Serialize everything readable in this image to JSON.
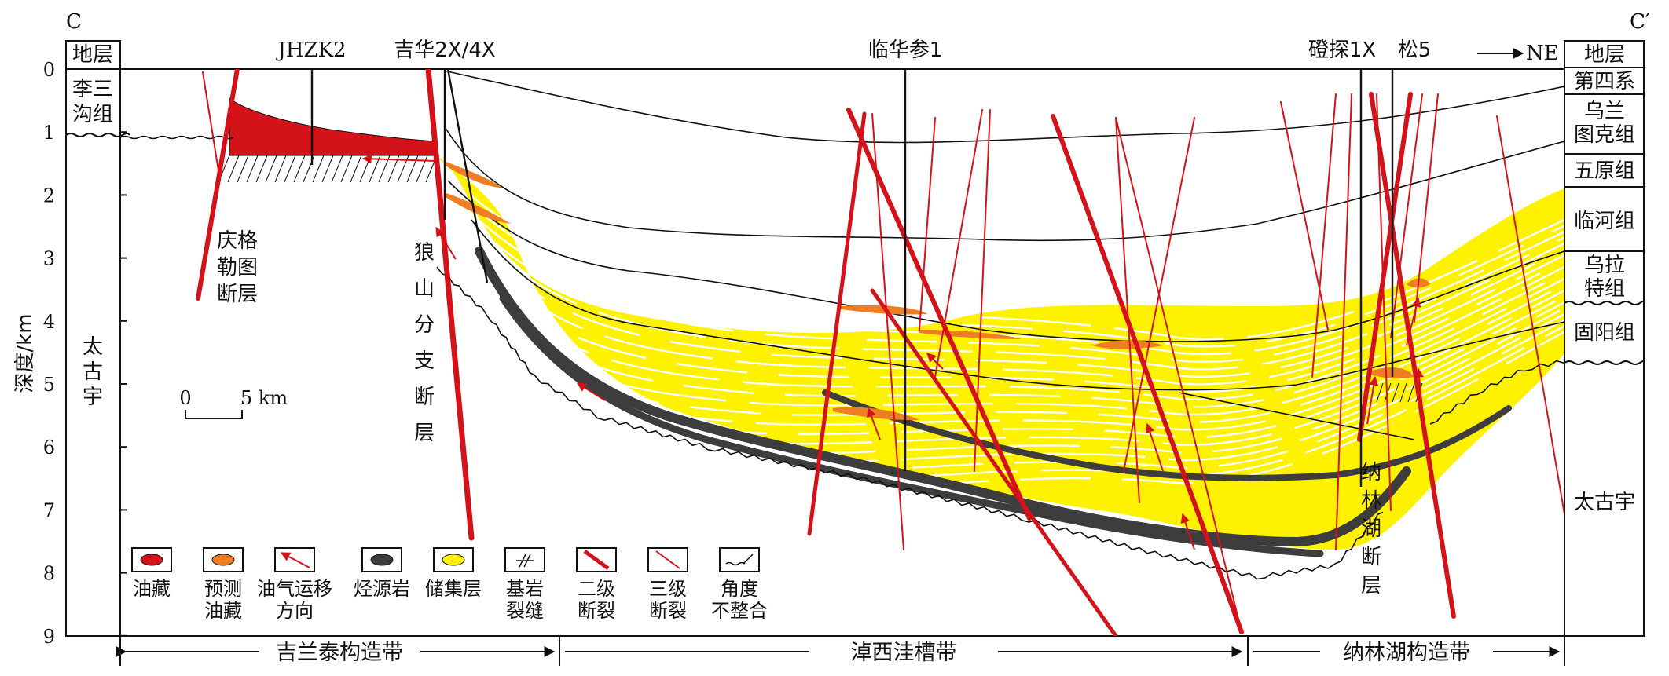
{
  "section": {
    "start_label": "C",
    "end_label": "C′",
    "direction": "NE"
  },
  "y_axis": {
    "label": "深度/km",
    "ticks": [
      "0",
      "1",
      "2",
      "3",
      "4",
      "5",
      "6",
      "7",
      "8",
      "9"
    ]
  },
  "left_column": {
    "header": "地层",
    "units": [
      {
        "name": "李三\n沟组"
      },
      {
        "name": "太\n古\n宇"
      }
    ]
  },
  "right_column": {
    "header": "地层",
    "units": [
      {
        "name": "第四系"
      },
      {
        "name": "乌兰\n图克组"
      },
      {
        "name": "五原组"
      },
      {
        "name": "临河组"
      },
      {
        "name": "乌拉\n特组"
      },
      {
        "name": "固阳组"
      },
      {
        "name": "太古宇"
      }
    ]
  },
  "wells": [
    {
      "name": "JHZK2"
    },
    {
      "name": "吉华2X/4X"
    },
    {
      "name": "临华参1"
    },
    {
      "name": "磴探1X"
    },
    {
      "name": "松5"
    }
  ],
  "fault_labels": {
    "qinggeletu": "庆格\n勒图\n断层",
    "langshan": "狼\n山\n分\n支\n断\n层",
    "nalinhu": "纳\n林\n湖\n断\n层"
  },
  "scale_bar": {
    "zero": "0",
    "length_label": "5 km"
  },
  "legend": [
    {
      "key": "oil",
      "label": "油藏",
      "color": "#d3121a"
    },
    {
      "key": "predicted",
      "label": "预测\n油藏",
      "color": "#ef7d22"
    },
    {
      "key": "migration",
      "label": "油气运移\n方向",
      "color": "#d3121a"
    },
    {
      "key": "source",
      "label": "烃源岩",
      "color": "#3d3d3d"
    },
    {
      "key": "reservoir",
      "label": "储集层",
      "color": "#fff200"
    },
    {
      "key": "fracture",
      "label": "基岩\n裂缝",
      "color": "#222222"
    },
    {
      "key": "fault2",
      "label": "二级\n断裂",
      "color": "#d3121a"
    },
    {
      "key": "fault3",
      "label": "三级\n断裂",
      "color": "#d3121a"
    },
    {
      "key": "unconf",
      "label": "角度\n不整合",
      "color": "#222222"
    }
  ],
  "zones": [
    {
      "name": "吉兰泰构造带"
    },
    {
      "name": "淖西洼槽带"
    },
    {
      "name": "纳林湖构造带"
    }
  ]
}
